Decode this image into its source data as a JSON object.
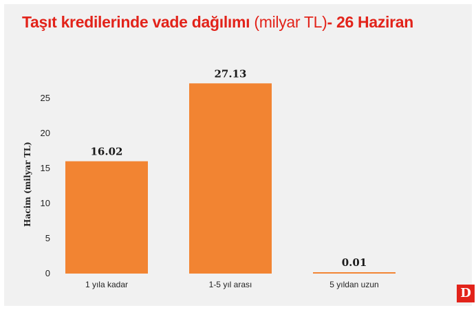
{
  "title": {
    "part1": "Taşıt kredilerinde vade dağılımı",
    "part2": "(milyar TL)",
    "part3": "- 26 Haziran"
  },
  "logo": "D",
  "colors": {
    "bar": "#f28432",
    "title": "#e2231a",
    "background": "#f1f1f1"
  },
  "chart_data": {
    "type": "bar",
    "categories": [
      "1 yıla kadar",
      "1-5 yıl arası",
      "5 yıldan uzun"
    ],
    "values": [
      16.02,
      27.13,
      0.01
    ],
    "data_labels": [
      "16.02",
      "27.13",
      "0.01"
    ],
    "title": "Taşıt kredilerinde vade dağılımı (milyar TL)- 26 Haziran",
    "xlabel": "",
    "ylabel": "Hacim (milyar TL)",
    "yticks": [
      0,
      5,
      10,
      15,
      20,
      25
    ],
    "ylim": [
      0,
      25
    ],
    "grid": false,
    "legend": "none"
  }
}
